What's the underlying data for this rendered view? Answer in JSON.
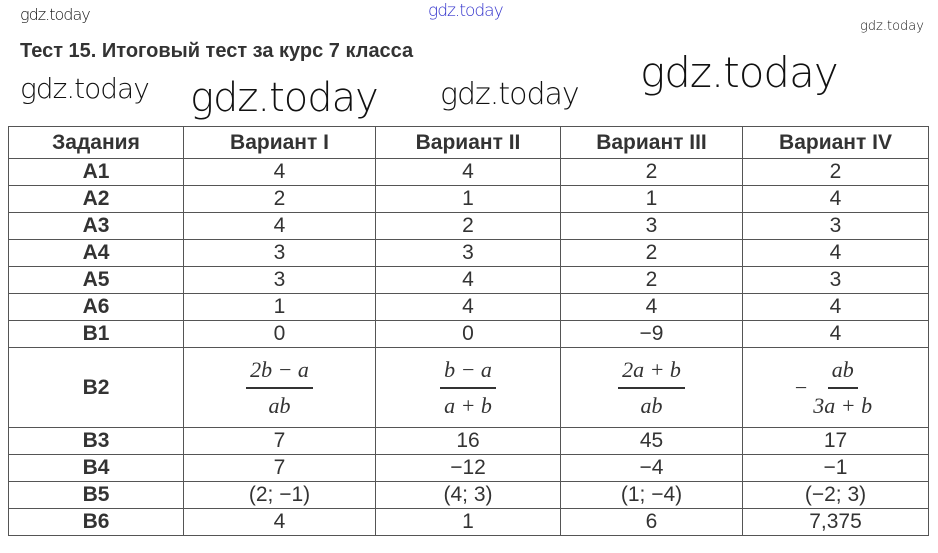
{
  "watermark": "gdz.today",
  "title": "Тест 15. Итоговый тест за курс 7 класса",
  "headers": [
    "Задания",
    "Вариант I",
    "Вариант II",
    "Вариант III",
    "Вариант IV"
  ],
  "rows": [
    {
      "key": "A1",
      "values": [
        "4",
        "4",
        "2",
        "2"
      ]
    },
    {
      "key": "A2",
      "values": [
        "2",
        "1",
        "1",
        "4"
      ]
    },
    {
      "key": "A3",
      "values": [
        "4",
        "2",
        "3",
        "3"
      ]
    },
    {
      "key": "A4",
      "values": [
        "3",
        "3",
        "2",
        "4"
      ]
    },
    {
      "key": "A5",
      "values": [
        "3",
        "4",
        "2",
        "3"
      ]
    },
    {
      "key": "A6",
      "values": [
        "1",
        "4",
        "4",
        "4"
      ]
    },
    {
      "key": "B1",
      "values": [
        "0",
        "0",
        "−9",
        "4"
      ]
    }
  ],
  "b2": {
    "key": "B2",
    "cells": [
      {
        "sign": "",
        "num": "2b − a",
        "den": "ab"
      },
      {
        "sign": "",
        "num": "b − a",
        "den": "a + b"
      },
      {
        "sign": "",
        "num": "2a + b",
        "den": "ab"
      },
      {
        "sign": "−",
        "num": "ab",
        "den": "3a + b"
      }
    ]
  },
  "rows2": [
    {
      "key": "B3",
      "values": [
        "7",
        "16",
        "45",
        "17"
      ]
    },
    {
      "key": "B4",
      "values": [
        "7",
        "−12",
        "−4",
        "−1"
      ]
    },
    {
      "key": "B5",
      "values": [
        "(2; −1)",
        "(4; 3)",
        "(1; −4)",
        "(−2; 3)"
      ]
    },
    {
      "key": "B6",
      "values": [
        "4",
        "1",
        "6",
        "7,375"
      ]
    }
  ]
}
